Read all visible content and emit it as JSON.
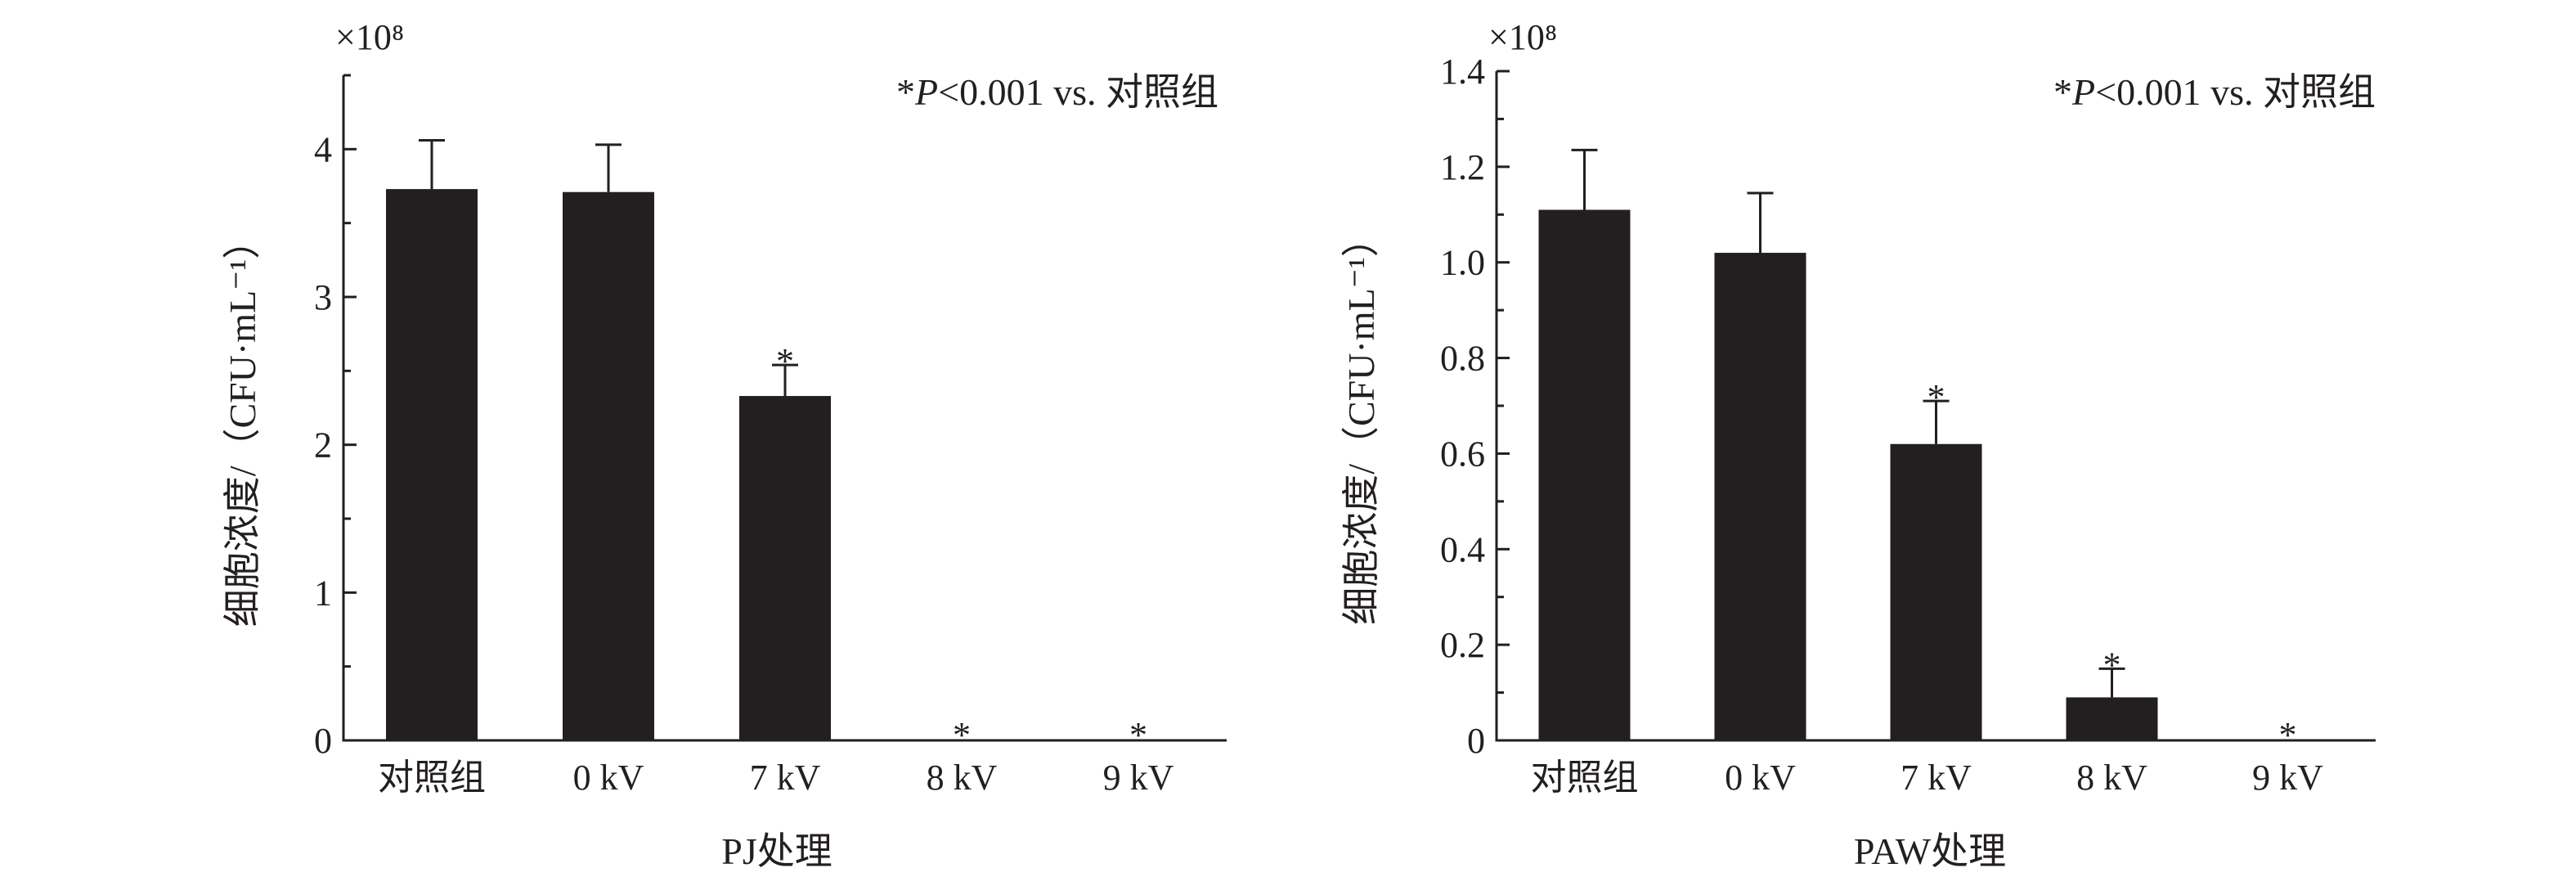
{
  "chart_data": [
    {
      "type": "bar",
      "categories": [
        "对照组",
        "0 kV",
        "7 kV",
        "8 kV",
        "9 kV"
      ],
      "values": [
        3.73,
        3.71,
        2.33,
        0,
        0
      ],
      "errors": [
        0.33,
        0.32,
        0.21,
        0,
        0
      ],
      "significant": [
        false,
        false,
        true,
        true,
        true
      ],
      "significance_mark": "*",
      "ylim": [
        0,
        4.5
      ],
      "yticks": [
        "0",
        "1",
        "2",
        "3",
        "4"
      ],
      "scale_label": "×10⁸",
      "ylabel": "细胞浓度/（CFU·mL⁻¹）",
      "xlabel": "PJ处理",
      "note": {
        "star": "*",
        "p": "P",
        "rest": "<0.001 vs. 对照组"
      },
      "bar_color": "#231f20",
      "grid": false
    },
    {
      "type": "bar",
      "categories": [
        "对照组",
        "0 kV",
        "7 kV",
        "8 kV",
        "9 kV"
      ],
      "values": [
        1.11,
        1.02,
        0.62,
        0.09,
        0
      ],
      "errors": [
        0.125,
        0.125,
        0.09,
        0.06,
        0
      ],
      "significant": [
        false,
        false,
        true,
        true,
        true
      ],
      "significance_mark": "*",
      "ylim": [
        0,
        1.4
      ],
      "yticks": [
        "0",
        "0.2",
        "0.4",
        "0.6",
        "0.8",
        "1.0",
        "1.2",
        "1.4"
      ],
      "scale_label": "×10⁸",
      "ylabel": "细胞浓度/（CFU·mL⁻¹）",
      "xlabel": "PAW处理",
      "note": {
        "star": "*",
        "p": "P",
        "rest": "<0.001 vs. 对照组"
      },
      "bar_color": "#231f20",
      "grid": false
    }
  ]
}
